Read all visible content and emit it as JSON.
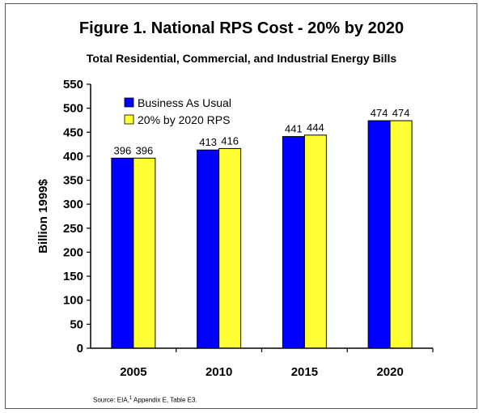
{
  "chart_data": {
    "type": "bar",
    "title": "Figure 1.  National RPS Cost - 20% by 2020",
    "subtitle": "Total Residential, Commercial, and Industrial Energy Bills",
    "ylabel": "Billion 1999$",
    "xlabel": "",
    "categories": [
      "2005",
      "2010",
      "2015",
      "2020"
    ],
    "series": [
      {
        "name": "Business As Usual",
        "color": "#0000ff",
        "values": [
          396,
          413,
          441,
          474
        ]
      },
      {
        "name": "20% by 2020 RPS",
        "color": "#ffff33",
        "values": [
          396,
          416,
          444,
          474
        ]
      }
    ],
    "ylim": [
      0,
      550
    ],
    "yticks": [
      0,
      50,
      100,
      150,
      200,
      250,
      300,
      350,
      400,
      450,
      500,
      550
    ],
    "grid": false,
    "legend_position": "top-left"
  },
  "source": {
    "prefix": "Source: EIA,",
    "superscript": "1",
    "suffix": " Appendix E, Table E3."
  }
}
